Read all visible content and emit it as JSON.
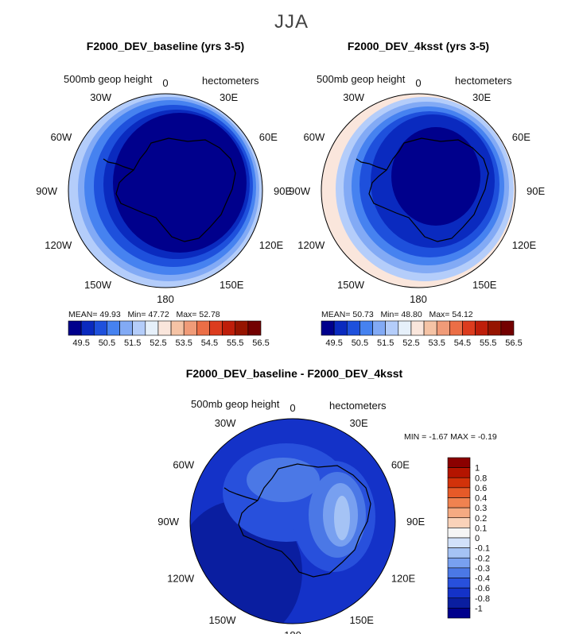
{
  "season": "JJA",
  "panels": [
    {
      "id": "baseline",
      "title": "F2000_DEV_baseline (yrs 3-5)",
      "variable": "500mb geop height",
      "units": "hectometers",
      "stats": {
        "mean_label": "MEAN=",
        "mean": "49.93",
        "min_label": "Min=",
        "min": "47.72",
        "max_label": "Max=",
        "max": "52.78"
      }
    },
    {
      "id": "4ksst",
      "title": "F2000_DEV_4ksst (yrs 3-5)",
      "variable": "500mb geop height",
      "units": "hectometers",
      "stats": {
        "mean_label": "MEAN=",
        "mean": "50.73",
        "min_label": "Min=",
        "min": "48.80",
        "max_label": "Max=",
        "max": "54.12"
      }
    },
    {
      "id": "diff",
      "title": "F2000_DEV_baseline - F2000_DEV_4ksst",
      "variable": "500mb geop height",
      "units": "hectometers",
      "stats": {
        "min_label": "MIN =",
        "min": "-1.67",
        "max_label": "MAX =",
        "max": "-0.19"
      }
    }
  ],
  "longitude_labels": [
    "0",
    "30E",
    "60E",
    "90E",
    "120E",
    "150E",
    "180",
    "150W",
    "120W",
    "90W",
    "60W",
    "30W"
  ],
  "abs_colorbar": {
    "labels": [
      "49.5",
      "50.5",
      "51.5",
      "52.5",
      "53.5",
      "54.5",
      "55.5",
      "56.5"
    ],
    "colors": [
      "#00008c",
      "#0a2abf",
      "#1e50dc",
      "#4682f0",
      "#82aaf5",
      "#b4cdfa",
      "#e6f0fa",
      "#fae6dc",
      "#f5c3a5",
      "#f09b78",
      "#eb6e46",
      "#dc3c1e",
      "#be1e0a",
      "#961400",
      "#730000"
    ]
  },
  "diff_colorbar": {
    "labels": [
      "1",
      "0.8",
      "0.6",
      "0.4",
      "0.3",
      "0.2",
      "0.1",
      "0",
      "-0.1",
      "-0.2",
      "-0.3",
      "-0.4",
      "-0.6",
      "-0.8",
      "-1"
    ],
    "colors": [
      "#8b0000",
      "#b41400",
      "#d2320a",
      "#e65a28",
      "#f08250",
      "#f5aa82",
      "#fad2b9",
      "#f5f5f5",
      "#d2e1fa",
      "#a5c3f5",
      "#78a0f0",
      "#4b78e6",
      "#2850dc",
      "#1432c8",
      "#0a1ea0",
      "#00008c"
    ]
  }
}
